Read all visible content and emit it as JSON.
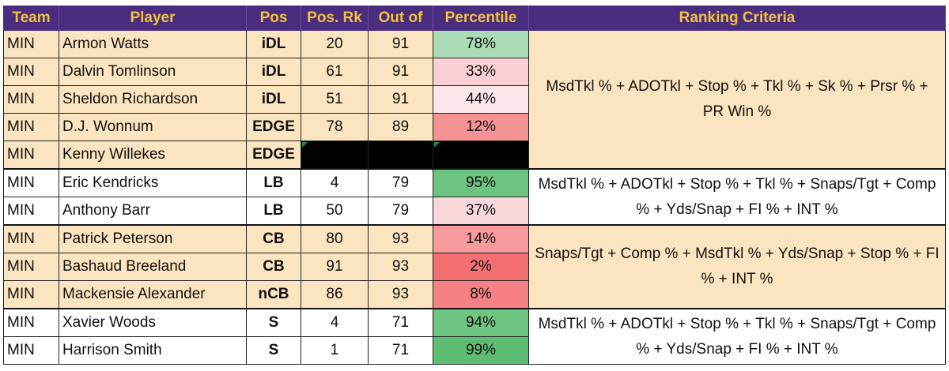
{
  "headers": {
    "team": "Team",
    "player": "Player",
    "pos": "Pos",
    "pos_rk": "Pos. Rk",
    "out_of": "Out of",
    "percentile": "Percentile",
    "criteria": "Ranking Criteria"
  },
  "rows": [
    {
      "team": "MIN",
      "player": "Armon Watts",
      "pos": "iDL",
      "rk": "20",
      "of": "91",
      "pct": "78%",
      "pct_color": "#a9dbb6"
    },
    {
      "team": "MIN",
      "player": "Dalvin Tomlinson",
      "pos": "iDL",
      "rk": "61",
      "of": "91",
      "pct": "33%",
      "pct_color": "#f9cfd3"
    },
    {
      "team": "MIN",
      "player": "Sheldon Richardson",
      "pos": "iDL",
      "rk": "51",
      "of": "91",
      "pct": "44%",
      "pct_color": "#fde7ea"
    },
    {
      "team": "MIN",
      "player": "D.J. Wonnum",
      "pos": "EDGE",
      "rk": "78",
      "of": "89",
      "pct": "12%",
      "pct_color": "#f59295"
    },
    {
      "team": "MIN",
      "player": "Kenny Willekes",
      "pos": "EDGE",
      "rk": "",
      "of": "",
      "pct": "",
      "pct_color": "#000000"
    },
    {
      "team": "MIN",
      "player": "Eric Kendricks",
      "pos": "LB",
      "rk": "4",
      "of": "79",
      "pct": "95%",
      "pct_color": "#6cc480"
    },
    {
      "team": "MIN",
      "player": "Anthony Barr",
      "pos": "LB",
      "rk": "50",
      "of": "79",
      "pct": "37%",
      "pct_color": "#f9d7db"
    },
    {
      "team": "MIN",
      "player": "Patrick Peterson",
      "pos": "CB",
      "rk": "80",
      "of": "93",
      "pct": "14%",
      "pct_color": "#f69a9d"
    },
    {
      "team": "MIN",
      "player": "Bashaud Breeland",
      "pos": "CB",
      "rk": "91",
      "of": "93",
      "pct": "2%",
      "pct_color": "#f46f72"
    },
    {
      "team": "MIN",
      "player": "Mackensie Alexander",
      "pos": "nCB",
      "rk": "86",
      "of": "93",
      "pct": "8%",
      "pct_color": "#f58184"
    },
    {
      "team": "MIN",
      "player": "Xavier Woods",
      "pos": "S",
      "rk": "4",
      "of": "71",
      "pct": "94%",
      "pct_color": "#6fc582"
    },
    {
      "team": "MIN",
      "player": "Harrison Smith",
      "pos": "S",
      "rk": "1",
      "of": "71",
      "pct": "99%",
      "pct_color": "#5dbd73"
    }
  ],
  "criteria": {
    "dl": "MsdTkl % + ADOTkl + Stop % + Tkl % + Sk % + Prsr % + PR Win %",
    "lb": "MsdTkl % + ADOTkl + Stop % + Tkl % + Snaps/Tgt + Comp % + Yds/Snap + FI % + INT %",
    "cb": "Snaps/Tgt + Comp % + MsdTkl % + Yds/Snap + Stop % + FI % + INT %",
    "s": "MsdTkl % + ADOTkl + Stop % + Tkl % + Snaps/Tgt + Comp % + Yds/Snap + FI % + INT %"
  },
  "colors": {
    "header_bg": "#4b2d7f",
    "header_text": "#f2c23a",
    "group_gold": "#fbe5c0",
    "group_white": "#ffffff"
  }
}
